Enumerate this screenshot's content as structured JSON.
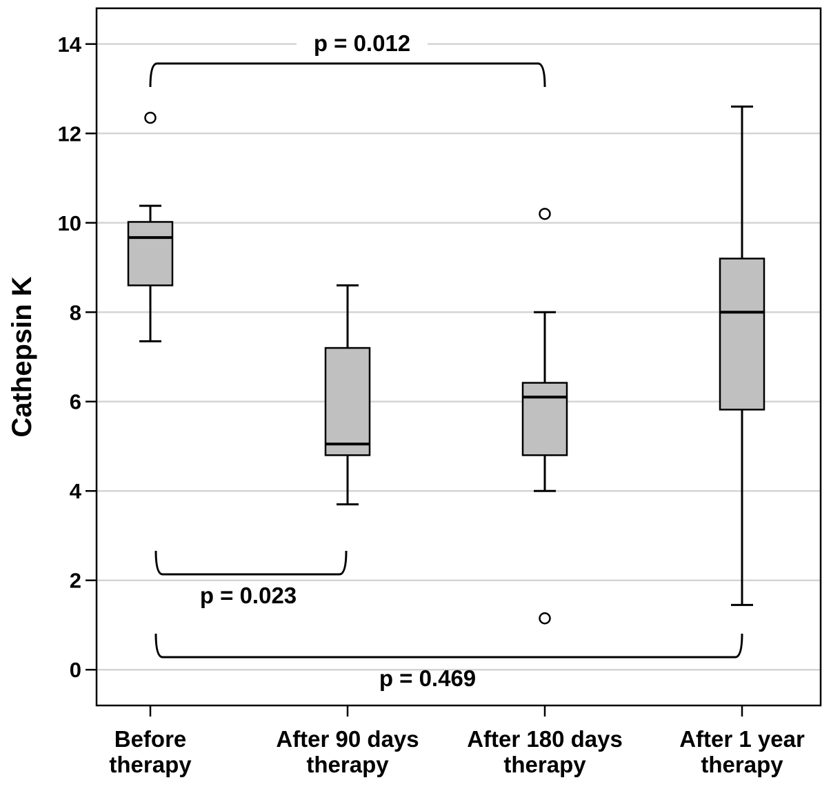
{
  "chart_data": {
    "type": "box",
    "y_label": "Cathepsin K",
    "categories": [
      "Before\ntherapy",
      "After 90 days\ntherapy",
      "After 180 days\ntherapy",
      "After 1 year\ntherapy"
    ],
    "boxes": [
      {
        "whislo": 7.35,
        "q1": 8.6,
        "med": 9.67,
        "q3": 10.02,
        "whishi": 10.38,
        "fliers": [
          12.35
        ]
      },
      {
        "whislo": 3.7,
        "q1": 4.8,
        "med": 5.05,
        "q3": 7.2,
        "whishi": 8.6,
        "fliers": []
      },
      {
        "whislo": 4.0,
        "q1": 4.8,
        "med": 6.1,
        "q3": 6.42,
        "whishi": 8.0,
        "fliers": [
          10.2,
          1.15
        ]
      },
      {
        "whislo": 1.45,
        "q1": 5.82,
        "med": 8.0,
        "q3": 9.2,
        "whishi": 12.6,
        "fliers": []
      }
    ],
    "color": "#c0c0c0",
    "annotations": [
      "p = 0.012",
      "p = 0.023",
      "p = 0.469"
    ],
    "ylim": [
      -0.8,
      14.8
    ],
    "yticks": [
      0,
      2,
      4,
      6,
      8,
      10,
      12,
      14
    ],
    "grid": true
  }
}
